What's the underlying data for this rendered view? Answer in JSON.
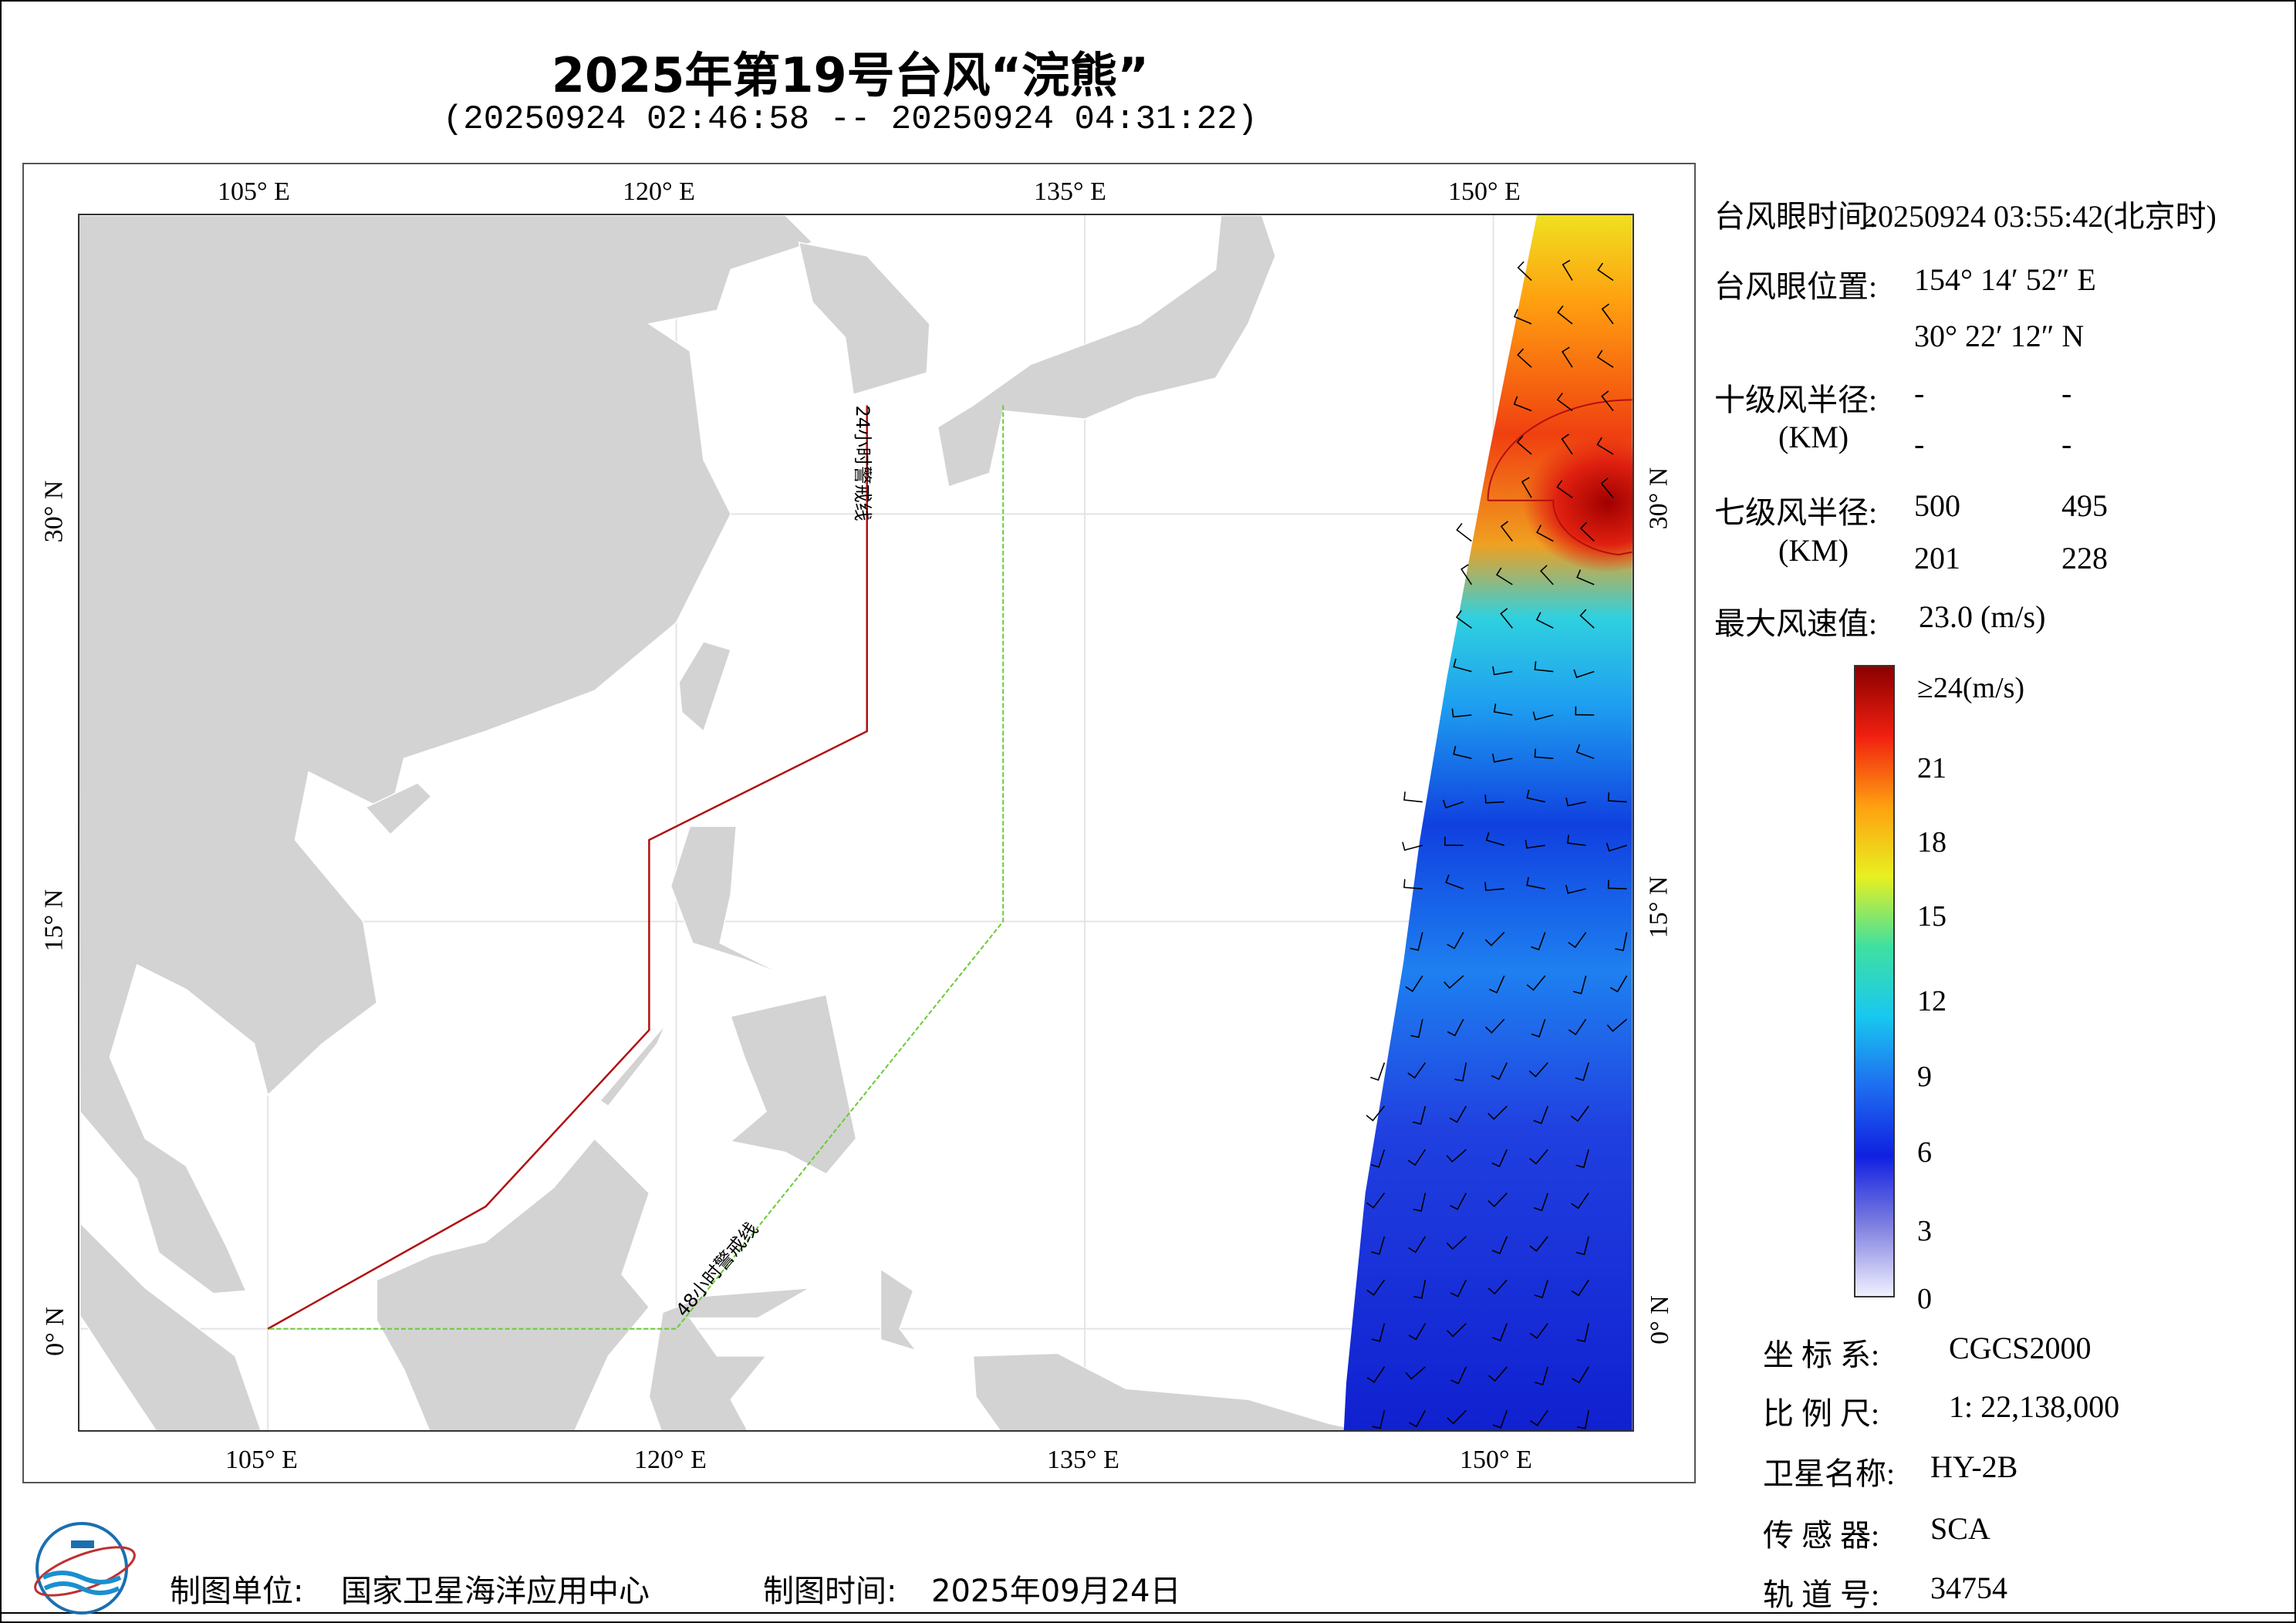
{
  "header": {
    "title": "2025年第19号台风“浣熊”",
    "subtitle": "(20250924 02:46:58 -- 20250924 04:31:22)"
  },
  "map": {
    "lon_ticks": [
      "105° E",
      "120° E",
      "135° E",
      "150° E"
    ],
    "lat_ticks": [
      "30° N",
      "15° N",
      "0° N"
    ],
    "warning_line_24h": "24小时警戒线",
    "warning_line_48h": "48小时警戒线",
    "colors": {
      "land": "#d3d3d3",
      "line_24h": "#b01010",
      "line_48h": "#66cc33",
      "storm_circle": "#b01010"
    }
  },
  "info": {
    "eye_time_label": "台风眼时间:",
    "eye_time_value": "20250924 03:55:42(北京时)",
    "eye_pos_label": "台风眼位置:",
    "eye_lon": "154° 14′ 52″ E",
    "eye_lat": "30° 22′ 12″ N",
    "r10_label": "十级风半径:",
    "km_label": "(KM)",
    "r10_values": [
      "-",
      "-",
      "-",
      "-"
    ],
    "r7_label": "七级风半径:",
    "r7_values": [
      "500",
      "495",
      "201",
      "228"
    ],
    "max_wind_label": "最大风速值:",
    "max_wind_value": "23.0  (m/s)"
  },
  "colorbar": {
    "labels": [
      "≥24(m/s)",
      "21",
      "18",
      "15",
      "12",
      "9",
      "6",
      "3",
      "0"
    ],
    "stops": [
      "#f0f0ff",
      "#8080e0",
      "#1020e0",
      "#1e6ef0",
      "#18c8f0",
      "#40e0a0",
      "#e8f020",
      "#ffa010",
      "#f02010",
      "#8b0000"
    ]
  },
  "meta": [
    {
      "label": "坐 标 系:",
      "value": "CGCS2000"
    },
    {
      "label": "比 例 尺:",
      "value": "1: 22,138,000"
    },
    {
      "label": "卫星名称:",
      "value": "HY-2B"
    },
    {
      "label": "传 感 器:",
      "value": "SCA"
    },
    {
      "label": "轨 道 号:",
      "value": "34754"
    }
  ],
  "footer": {
    "unit_label": "制图单位:",
    "unit_value": "国家卫星海洋应用中心",
    "time_label": "制图时间:",
    "time_value": "2025年09月24日"
  }
}
